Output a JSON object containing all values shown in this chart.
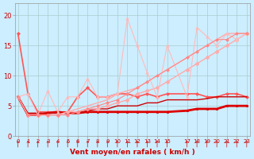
{
  "xlabel": "Vent moyen/en rafales ( km/h )",
  "bg_color": "#cceeff",
  "grid_color": "#aacccc",
  "x_values": [
    0,
    1,
    2,
    3,
    4,
    5,
    6,
    7,
    8,
    9,
    10,
    11,
    12,
    13,
    14,
    15,
    17,
    18,
    19,
    20,
    21,
    22,
    23
  ],
  "xtick_labels": [
    "0",
    "1",
    "2",
    "3",
    "4",
    "5",
    "6",
    "7",
    "8",
    "9",
    "10",
    "11",
    "12",
    "13",
    "14",
    "15",
    "17",
    "18",
    "19",
    "20",
    "21",
    "22",
    "23"
  ],
  "series": [
    {
      "y": [
        17,
        7,
        4,
        4,
        4,
        4,
        6.5,
        8,
        6.5,
        6.5,
        7,
        7,
        6.5,
        7,
        6.5,
        7,
        7,
        7,
        6.5,
        6.5,
        7,
        7,
        6.5
      ],
      "color": "#ff5555",
      "lw": 1.2,
      "marker": "D",
      "ms": 2.0
    },
    {
      "y": [
        6.5,
        3.5,
        3.5,
        3.8,
        4,
        3.8,
        3.8,
        4,
        4,
        4,
        4,
        4,
        4,
        4,
        4,
        4,
        4.2,
        4.5,
        4.5,
        4.5,
        5,
        5,
        5
      ],
      "color": "#dd0000",
      "lw": 2.0,
      "marker": "s",
      "ms": 2.0
    },
    {
      "y": [
        6.5,
        3.8,
        3.8,
        3.8,
        3.8,
        3.8,
        3.8,
        4.2,
        4.5,
        4.5,
        5,
        5,
        5,
        5.5,
        5.5,
        6,
        6,
        6,
        6.2,
        6.5,
        6.5,
        6.5,
        6.5
      ],
      "color": "#cc0000",
      "lw": 1.0,
      "marker": "none",
      "ms": 0
    },
    {
      "y": [
        6.5,
        3.5,
        3.5,
        3.5,
        3.5,
        4,
        4,
        4.5,
        4.5,
        5,
        5.5,
        6,
        7,
        7.5,
        8,
        9,
        11,
        12,
        13,
        14,
        15,
        16,
        17
      ],
      "color": "#ffaaaa",
      "lw": 1.0,
      "marker": "D",
      "ms": 2.5
    },
    {
      "y": [
        6.5,
        3.5,
        3.5,
        3.5,
        3.5,
        4,
        4.5,
        5,
        5.5,
        6,
        7,
        7.5,
        8,
        9,
        10,
        11,
        13,
        14,
        15,
        16,
        17,
        17,
        17
      ],
      "color": "#ffaaaa",
      "lw": 1.0,
      "marker": "none",
      "ms": 0
    },
    {
      "y": [
        6.5,
        7,
        3.5,
        7.5,
        4,
        6.5,
        6.5,
        9.5,
        6.5,
        6.5,
        7,
        19.5,
        15,
        10.5,
        6.5,
        15,
        6.5,
        18,
        16.5,
        15,
        17,
        16,
        17
      ],
      "color": "#ffbbbb",
      "lw": 0.8,
      "marker": "^",
      "ms": 2.5
    },
    {
      "y": [
        6.5,
        3.5,
        3.5,
        3.5,
        3.5,
        3.5,
        4,
        4.5,
        5,
        5.5,
        6,
        7,
        8,
        9,
        10,
        11,
        13,
        14,
        15,
        16,
        16,
        17,
        17
      ],
      "color": "#ff8888",
      "lw": 0.8,
      "marker": "D",
      "ms": 2.0
    }
  ],
  "ytick_values": [
    0,
    5,
    10,
    15,
    20
  ],
  "ylim": [
    0,
    22
  ],
  "xlim": [
    -0.3,
    23.3
  ]
}
